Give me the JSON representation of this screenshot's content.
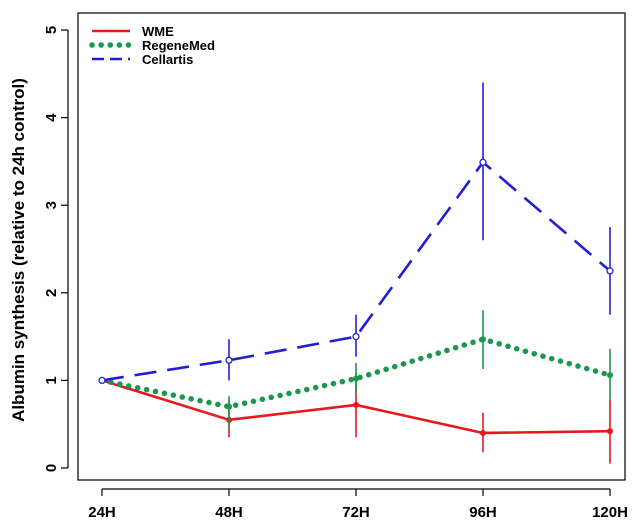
{
  "chart_data": {
    "type": "line",
    "title": "",
    "xlabel": "",
    "ylabel": "Albumin synthesis (relative to 24h control)",
    "categories": [
      "24H",
      "48H",
      "72H",
      "96H",
      "120H"
    ],
    "ylim": [
      0,
      5
    ],
    "yticks": [
      0,
      1,
      2,
      3,
      4,
      5
    ],
    "legend_position": "top-left",
    "grid": false,
    "series": [
      {
        "name": "WME",
        "color": "#e41a1c",
        "style": "solid",
        "values": [
          1.0,
          0.55,
          0.72,
          0.4,
          0.42
        ],
        "err_low": [
          1.0,
          0.35,
          0.35,
          0.18,
          0.05
        ],
        "err_high": [
          1.0,
          0.78,
          1.08,
          0.63,
          0.78
        ]
      },
      {
        "name": "RegeneMed",
        "color": "#1a9850",
        "style": "dotted",
        "values": [
          1.0,
          0.7,
          1.02,
          1.47,
          1.06
        ],
        "err_low": [
          1.0,
          0.45,
          0.85,
          1.13,
          0.77
        ],
        "err_high": [
          1.0,
          0.82,
          1.2,
          1.8,
          1.36
        ]
      },
      {
        "name": "Cellartis",
        "color": "#1f1fd6",
        "style": "dashed",
        "values": [
          1.0,
          1.23,
          1.5,
          3.49,
          2.25
        ],
        "err_low": [
          1.0,
          1.0,
          1.27,
          2.6,
          1.75
        ],
        "err_high": [
          1.0,
          1.47,
          1.75,
          4.4,
          2.75
        ]
      }
    ]
  }
}
